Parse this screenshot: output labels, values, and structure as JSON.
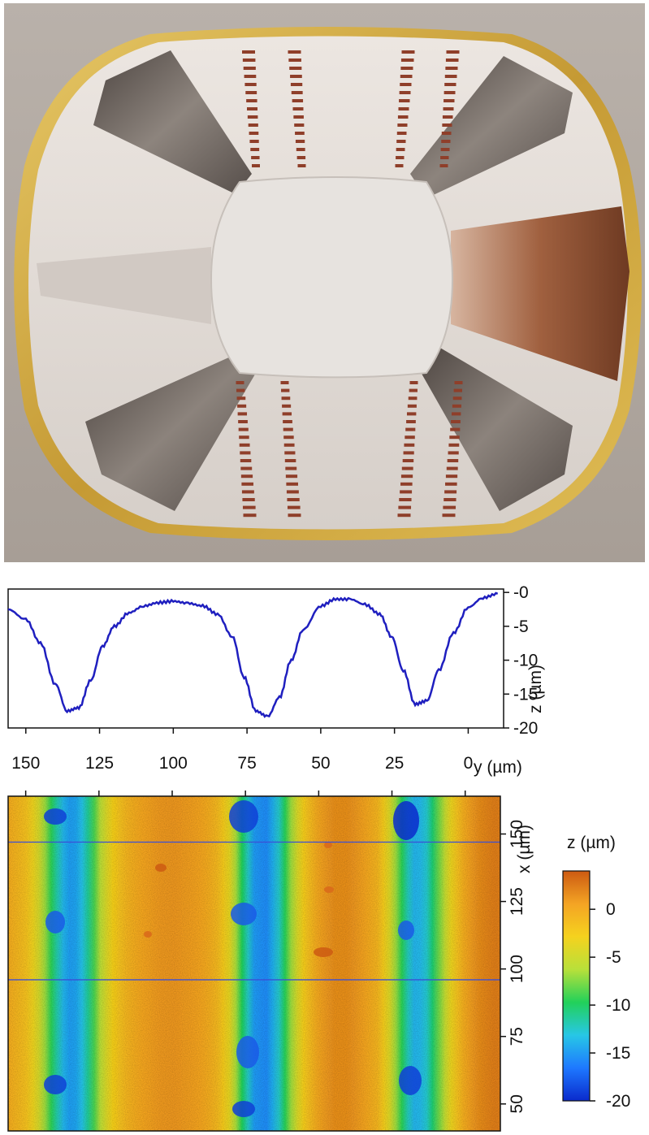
{
  "photo": {
    "subject": "resonator cross-section photograph",
    "colors": {
      "background": "#b7aea6",
      "rim": "#c9a43c",
      "interior": "#d8d3cf",
      "copper": "#9c5a3e",
      "dark_fins": "#5a524e"
    }
  },
  "chart_data": [
    {
      "type": "line",
      "xlabel": "y (µm)",
      "ylabel": "z (µm)",
      "x_ticks": [
        150,
        125,
        100,
        75,
        50,
        25,
        0
      ],
      "y_ticks": [
        0,
        -5,
        -10,
        -15,
        -20
      ],
      "x_tick_labels": [
        "150",
        "125",
        "100",
        "75",
        "50",
        "25",
        "0"
      ],
      "y_tick_labels": [
        "-0",
        "-5",
        "-10",
        "-15",
        "-20"
      ],
      "xlim": [
        156,
        -12
      ],
      "ylim": [
        -20,
        0.5
      ],
      "series": [
        {
          "color": "#1f1fbf",
          "x": [
            156,
            150,
            145,
            140,
            136,
            132,
            128,
            124,
            120,
            115,
            110,
            105,
            100,
            95,
            90,
            85,
            80,
            76,
            72,
            68,
            64,
            60,
            56,
            50,
            45,
            40,
            35,
            30,
            26,
            22,
            18,
            14,
            10,
            5,
            0,
            -5,
            -10
          ],
          "y": [
            -2.5,
            -4.0,
            -7.5,
            -13.5,
            -17.5,
            -17.0,
            -13.0,
            -8.0,
            -5.0,
            -3.0,
            -2.0,
            -1.5,
            -1.3,
            -1.6,
            -2.0,
            -3.2,
            -6.5,
            -12.5,
            -17.5,
            -18.3,
            -15.5,
            -10.0,
            -5.5,
            -2.0,
            -1.0,
            -1.0,
            -1.8,
            -3.2,
            -6.5,
            -11.5,
            -16.5,
            -16.0,
            -11.5,
            -6.0,
            -2.2,
            -0.8,
            -0.2
          ]
        }
      ]
    },
    {
      "type": "heatmap",
      "xlabel": "y (µm)",
      "ylabel": "x (µm)",
      "colorbar_label": "z (µm)",
      "x_ticks": [
        150,
        125,
        100,
        75,
        50,
        25,
        0
      ],
      "y_ticks": [
        150,
        125,
        100,
        75,
        50
      ],
      "y_tick_labels": [
        "150",
        "125",
        "100",
        "75",
        "50"
      ],
      "colorbar_ticks": [
        0,
        -5,
        -10,
        -15,
        -20
      ],
      "colorbar_tick_labels": [
        "0",
        "-5",
        "-10",
        "-15",
        "-20"
      ],
      "zlim": [
        -20,
        4
      ],
      "colormap": [
        "#0a2acc",
        "#1e78ff",
        "#27c7e6",
        "#22d15a",
        "#b8e03a",
        "#f5d21e",
        "#f4a424",
        "#cc5a12"
      ],
      "groove_centers_y_um": [
        135,
        68,
        17
      ],
      "horizontal_lines_x_um": [
        147,
        96
      ],
      "line_color": "#3b4fd6"
    }
  ]
}
